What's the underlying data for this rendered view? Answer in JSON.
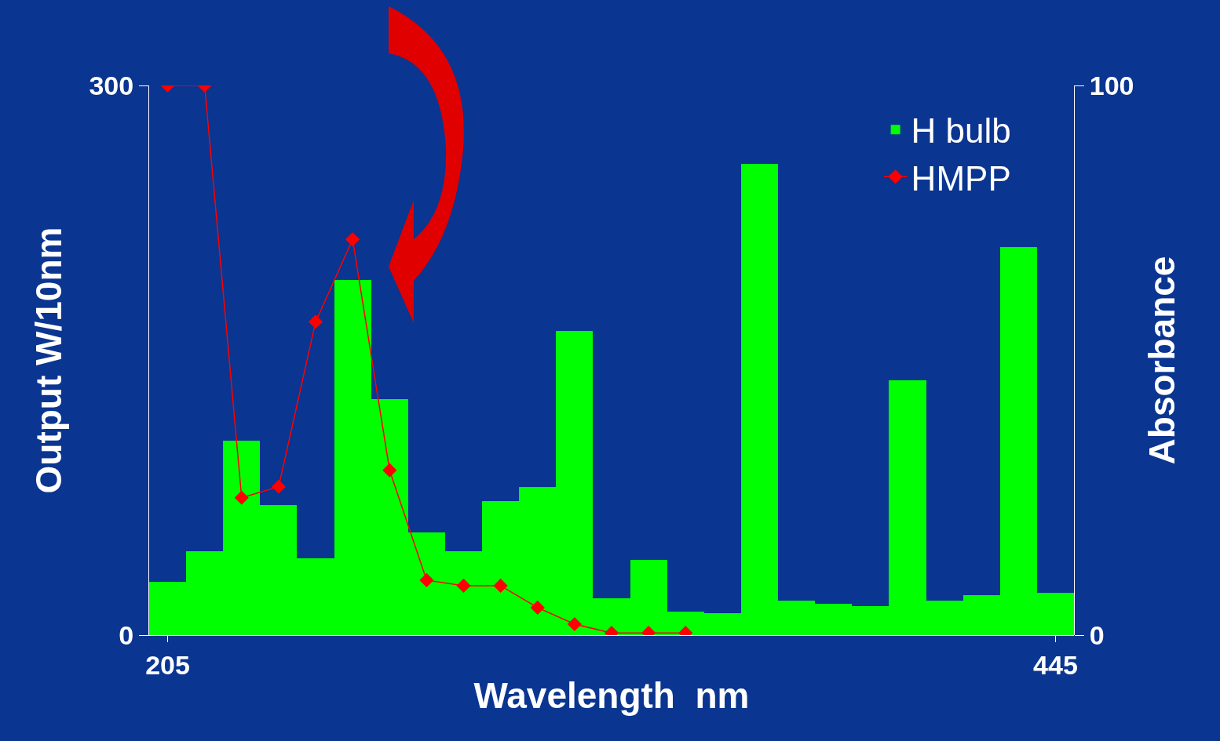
{
  "chart_data": {
    "type": "bar",
    "xlabel": "Wavelength  nm",
    "ylabel": "Output W/10nm",
    "y2label": "Absorbance",
    "x": [
      205,
      215,
      225,
      235,
      245,
      255,
      265,
      275,
      285,
      295,
      305,
      315,
      325,
      335,
      345,
      355,
      365,
      375,
      385,
      395,
      405,
      415,
      425,
      435,
      445
    ],
    "series": [
      {
        "name": "H bulb",
        "color": "#00ff00",
        "values": [
          29,
          46,
          106,
          71,
          42,
          194,
          129,
          56,
          46,
          73,
          81,
          166,
          20,
          41,
          13,
          12,
          257,
          19,
          17,
          16,
          139,
          19,
          22,
          212,
          23
        ]
      },
      {
        "name": "HMPP",
        "type": "line",
        "axis": "y2",
        "color": "#ff0000",
        "marker": "diamond",
        "x": [
          205,
          215,
          225,
          235,
          245,
          255,
          265,
          275,
          285,
          295,
          305,
          315,
          325,
          335,
          345
        ],
        "values": [
          100,
          100,
          25,
          27,
          57,
          72,
          30,
          10,
          9,
          9,
          5,
          2,
          0.4,
          0.4,
          0.4
        ]
      }
    ],
    "xlim": [
      200,
      450
    ],
    "xticks": [
      205,
      445
    ],
    "ylim": [
      0,
      300
    ],
    "yticks": [
      0,
      300
    ],
    "y2lim": [
      0,
      100
    ],
    "y2ticks": [
      0,
      100
    ],
    "grid": false,
    "legend": "top right"
  }
}
